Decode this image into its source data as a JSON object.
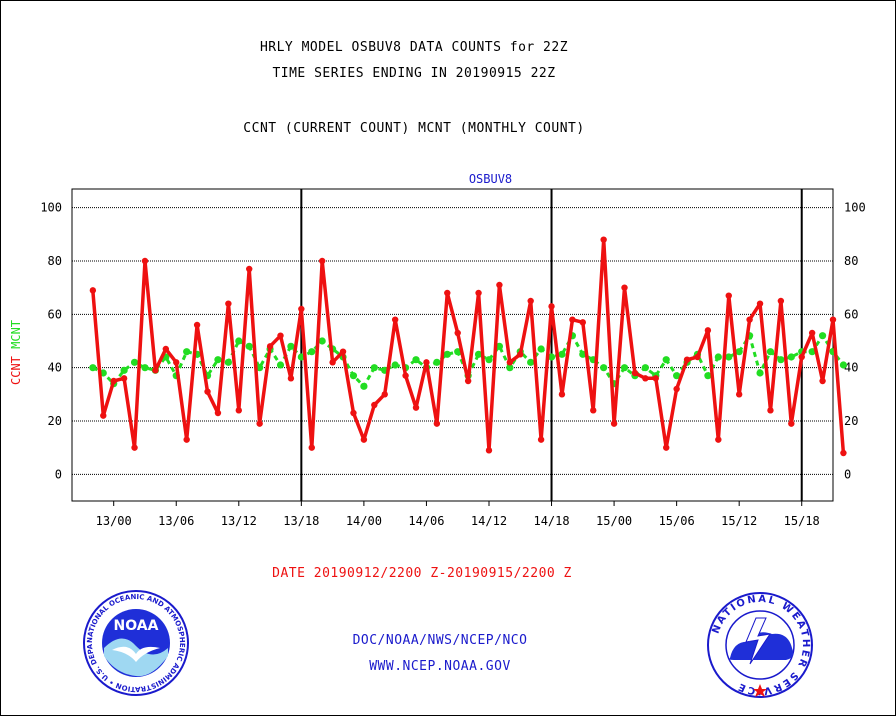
{
  "titles": {
    "line1": "HRLY MODEL OSBUV8 DATA COUNTS for 22Z",
    "line2": "TIME SERIES ENDING IN 20190915 22Z",
    "line3": "CCNT (CURRENT COUNT) MCNT (MONTHLY COUNT)"
  },
  "footer": {
    "date_range": "DATE 20190912/2200 Z-20190915/2200 Z",
    "org": "DOC/NOAA/NWS/NCEP/NCO",
    "url": "WWW.NCEP.NOAA.GOV"
  },
  "logos": {
    "noaa": {
      "text": "NOAA",
      "ring_text": "NATIONAL OCEANIC AND ATMOSPHERIC ADMINISTRATION • U.S. DEPARTMENT OF COMMERCE •"
    },
    "nws": {
      "ring_text": "NATIONAL WEATHER SERVICE"
    }
  },
  "colors": {
    "ccnt": "#ee1111",
    "mcnt": "#22dd22",
    "station": "#1a1acc",
    "ylabel_ccnt": "#ee1111",
    "ylabel_mcnt": "#22dd22"
  },
  "chart_data": {
    "type": "line",
    "title": "OSBUV8",
    "ylabel_parts": [
      "CCNT",
      "MCNT"
    ],
    "ylim": [
      -10,
      107
    ],
    "yticks": [
      0,
      20,
      40,
      60,
      80,
      100
    ],
    "xlim": [
      -2,
      71
    ],
    "x_tick_positions": [
      2,
      8,
      14,
      20,
      26,
      32,
      38,
      44,
      50,
      56,
      62,
      68
    ],
    "x_tick_labels": [
      "13/00",
      "13/06",
      "13/12",
      "13/18",
      "14/00",
      "14/06",
      "14/12",
      "14/18",
      "15/00",
      "15/06",
      "15/12",
      "15/18"
    ],
    "day_separators": [
      20,
      44,
      68
    ],
    "grid": true,
    "x": [
      0,
      1,
      2,
      3,
      4,
      5,
      6,
      7,
      8,
      9,
      10,
      11,
      12,
      13,
      14,
      15,
      16,
      17,
      18,
      19,
      20,
      21,
      22,
      23,
      24,
      25,
      26,
      27,
      28,
      29,
      30,
      31,
      32,
      33,
      34,
      35,
      36,
      37,
      38,
      39,
      40,
      41,
      42,
      43,
      44,
      45,
      46,
      47,
      48,
      49,
      50,
      51,
      52,
      53,
      54,
      55,
      56,
      57,
      58,
      59,
      60,
      61,
      62,
      63,
      64,
      65,
      66,
      67,
      68,
      69,
      70,
      71,
      72
    ],
    "series": [
      {
        "name": "CCNT",
        "values": [
          69,
          22,
          35,
          36,
          10,
          80,
          39,
          47,
          42,
          13,
          56,
          31,
          23,
          64,
          24,
          77,
          19,
          48,
          52,
          36,
          62,
          10,
          80,
          42,
          46,
          23,
          13,
          26,
          30,
          58,
          37,
          25,
          42,
          19,
          68,
          53,
          35,
          68,
          9,
          71,
          42,
          45,
          65,
          13,
          63,
          30,
          58,
          57,
          24,
          88,
          19,
          70,
          38,
          36,
          36,
          10,
          32,
          43,
          44,
          54,
          13,
          67,
          30,
          58,
          64,
          24,
          65,
          19,
          44,
          53,
          35,
          58,
          8
        ]
      },
      {
        "name": "MCNT",
        "values": [
          40,
          38,
          34,
          39,
          42,
          40,
          39,
          44,
          37,
          46,
          45,
          37,
          43,
          42,
          50,
          48,
          40,
          47,
          41,
          48,
          44,
          46,
          50,
          47,
          44,
          37,
          33,
          40,
          39,
          41,
          40,
          43,
          40,
          42,
          45,
          46,
          37,
          45,
          43,
          48,
          40,
          46,
          42,
          47,
          44,
          45,
          52,
          45,
          43,
          40,
          34,
          40,
          37,
          40,
          37,
          43,
          37,
          42,
          45,
          37,
          44,
          44,
          46,
          52,
          38,
          46,
          43,
          44,
          46,
          46,
          52,
          46,
          41
        ]
      }
    ]
  }
}
